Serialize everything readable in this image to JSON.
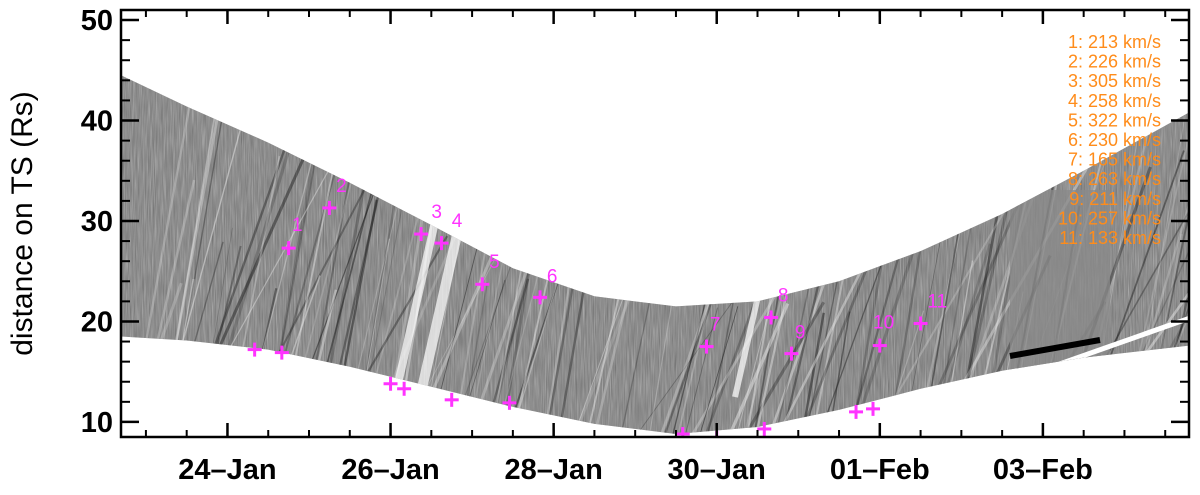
{
  "chart_data": {
    "type": "scatter",
    "title": "",
    "xlabel": "",
    "ylabel": "distance on TS (Rs)",
    "x_unit": "day",
    "xlim": [
      "2008-01-22T16:40",
      "2008-02-04T19:00"
    ],
    "ylim": [
      8.5,
      51
    ],
    "x_ticks": [
      "2008-01-24",
      "2008-01-26",
      "2008-01-28",
      "2008-01-30",
      "2008-02-01",
      "2008-02-03"
    ],
    "x_tick_labels": [
      "24–Jan",
      "26–Jan",
      "28–Jan",
      "30–Jan",
      "01–Feb",
      "03–Feb"
    ],
    "y_ticks": [
      10,
      20,
      30,
      40,
      50
    ],
    "y_tick_labels": [
      "10",
      "20",
      "30",
      "40",
      "50"
    ],
    "grid": false,
    "legend_position": "top-right",
    "colors": {
      "markers": "#ff33ff",
      "legend_text": "#ff8c1a",
      "axes": "#000000"
    },
    "series": [
      {
        "points": [
          {
            "x": "2008-01-24T08:00",
            "y": 17.2
          },
          {
            "x": "2008-01-24T16:00",
            "y": 16.9
          },
          {
            "x": "2008-01-24T18:00",
            "y": 27.3
          },
          {
            "x": "2008-01-25T06:00",
            "y": 31.3
          },
          {
            "x": "2008-01-26T00:00",
            "y": 13.8
          },
          {
            "x": "2008-01-26T04:00",
            "y": 13.3
          },
          {
            "x": "2008-01-26T09:00",
            "y": 28.7
          },
          {
            "x": "2008-01-26T15:00",
            "y": 27.8
          },
          {
            "x": "2008-01-26T18:00",
            "y": 12.2
          },
          {
            "x": "2008-01-27T03:00",
            "y": 23.7
          },
          {
            "x": "2008-01-27T11:00",
            "y": 11.9
          },
          {
            "x": "2008-01-27T20:00",
            "y": 22.4
          },
          {
            "x": "2008-01-29T14:00",
            "y": 8.8
          },
          {
            "x": "2008-01-29T21:00",
            "y": 17.5
          },
          {
            "x": "2008-01-30T00:00",
            "y": 8.4
          },
          {
            "x": "2008-01-30T14:00",
            "y": 9.3
          },
          {
            "x": "2008-01-30T16:00",
            "y": 20.4
          },
          {
            "x": "2008-01-30T22:00",
            "y": 16.8
          },
          {
            "x": "2008-01-31T17:00",
            "y": 11.0
          },
          {
            "x": "2008-01-31T22:00",
            "y": 11.3
          },
          {
            "x": "2008-02-01T00:00",
            "y": 17.6
          },
          {
            "x": "2008-02-01T12:00",
            "y": 19.8
          }
        ]
      }
    ],
    "annotations": [
      {
        "text": "1",
        "x": "2008-01-24T19:00",
        "y": 29.0
      },
      {
        "text": "2",
        "x": "2008-01-25T08:00",
        "y": 32.9
      },
      {
        "text": "3",
        "x": "2008-01-26T12:00",
        "y": 30.3
      },
      {
        "text": "4",
        "x": "2008-01-26T18:00",
        "y": 29.4
      },
      {
        "text": "5",
        "x": "2008-01-27T05:00",
        "y": 25.3
      },
      {
        "text": "6",
        "x": "2008-01-27T22:00",
        "y": 23.9
      },
      {
        "text": "7",
        "x": "2008-01-29T22:00",
        "y": 19.1
      },
      {
        "text": "8",
        "x": "2008-01-30T18:00",
        "y": 22.0
      },
      {
        "text": "9",
        "x": "2008-01-30T23:00",
        "y": 18.3
      },
      {
        "text": "10",
        "x": "2008-01-31T22:00",
        "y": 19.3
      },
      {
        "text": "11",
        "x": "2008-02-01T14:00",
        "y": 21.4
      }
    ],
    "legend_entries": [
      "1: 213 km/s",
      "2: 226 km/s",
      "3: 305 km/s",
      "4: 258 km/s",
      "5: 322 km/s",
      "6: 230 km/s",
      "7: 165 km/s",
      "8: 263 km/s",
      "9: 211 km/s",
      "10: 257 km/s",
      "11: 133 km/s"
    ],
    "coverage_band": {
      "note": "grey running-difference image band (J-map); upper and lower edges in Rs",
      "upper": [
        {
          "x": "2008-01-22T16:40",
          "y": 44.5
        },
        {
          "x": "2008-01-23T12:00",
          "y": 41.4
        },
        {
          "x": "2008-01-24T12:00",
          "y": 37.8
        },
        {
          "x": "2008-01-25T12:00",
          "y": 33.8
        },
        {
          "x": "2008-01-26T12:00",
          "y": 29.6
        },
        {
          "x": "2008-01-27T12:00",
          "y": 25.3
        },
        {
          "x": "2008-01-28T12:00",
          "y": 22.5
        },
        {
          "x": "2008-01-29T12:00",
          "y": 21.5
        },
        {
          "x": "2008-01-30T12:00",
          "y": 22.0
        },
        {
          "x": "2008-01-31T12:00",
          "y": 24.0
        },
        {
          "x": "2008-02-01T12:00",
          "y": 27.0
        },
        {
          "x": "2008-02-02T12:00",
          "y": 30.7
        },
        {
          "x": "2008-02-03T12:00",
          "y": 35.0
        },
        {
          "x": "2008-02-04T19:00",
          "y": 40.8
        }
      ],
      "lower": [
        {
          "x": "2008-02-04T19:00",
          "y": 17.6
        },
        {
          "x": "2008-02-03T12:00",
          "y": 16.4
        },
        {
          "x": "2008-02-02T12:00",
          "y": 15.1
        },
        {
          "x": "2008-02-01T12:00",
          "y": 13.3
        },
        {
          "x": "2008-01-31T12:00",
          "y": 11.2
        },
        {
          "x": "2008-01-30T12:00",
          "y": 9.5
        },
        {
          "x": "2008-01-29T12:00",
          "y": 8.8
        },
        {
          "x": "2008-01-28T12:00",
          "y": 9.8
        },
        {
          "x": "2008-01-27T12:00",
          "y": 11.5
        },
        {
          "x": "2008-01-26T12:00",
          "y": 13.5
        },
        {
          "x": "2008-01-25T12:00",
          "y": 15.5
        },
        {
          "x": "2008-01-24T12:00",
          "y": 17.2
        },
        {
          "x": "2008-01-23T12:00",
          "y": 18.1
        },
        {
          "x": "2008-01-22T16:40",
          "y": 18.5
        }
      ]
    }
  }
}
